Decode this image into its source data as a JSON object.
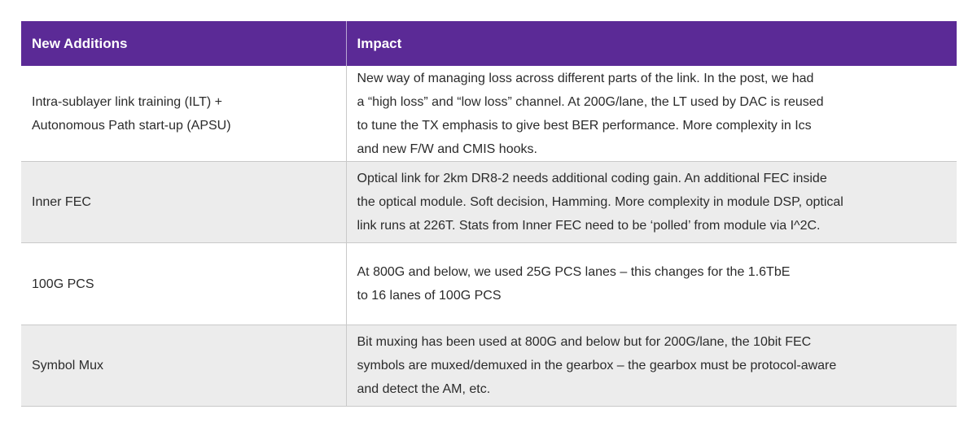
{
  "table": {
    "headers": [
      "New Additions",
      "Impact"
    ],
    "rows": [
      {
        "addition": [
          "Intra-sublayer link training (ILT) +",
          "Autonomous Path start-up (APSU)"
        ],
        "impact": [
          "New way of managing loss across different parts of the link.  In the post, we had",
          "a “high loss” and “low loss” channel. At 200G/lane, the LT used by DAC is reused",
          "to tune the TX emphasis to give best BER performance.  More complexity in Ics",
          "and new F/W and CMIS hooks."
        ]
      },
      {
        "addition": [
          "Inner FEC"
        ],
        "impact": [
          "Optical link for 2km DR8-2 needs additional coding gain.  An additional FEC inside",
          "the optical module. Soft decision, Hamming. More complexity in module DSP, optical",
          "link runs at 226T. Stats from Inner FEC need to be ‘polled’ from module via I^2C."
        ]
      },
      {
        "addition": [
          "100G PCS"
        ],
        "impact": [
          "At 800G and below, we used 25G PCS lanes – this changes for the 1.6TbE",
          "to 16 lanes of 100G PCS"
        ]
      },
      {
        "addition": [
          "Symbol Mux"
        ],
        "impact": [
          "Bit muxing has been used at 800G and below but for 200G/lane, the 10bit FEC",
          "symbols are muxed/demuxed in the gearbox – the gearbox must be protocol-aware",
          "and detect the AM, etc."
        ]
      }
    ]
  },
  "colors": {
    "header_bg": "#5b2a96",
    "header_text": "#ffffff",
    "row_alt_bg": "#ececec",
    "border": "#c9c9c9"
  }
}
